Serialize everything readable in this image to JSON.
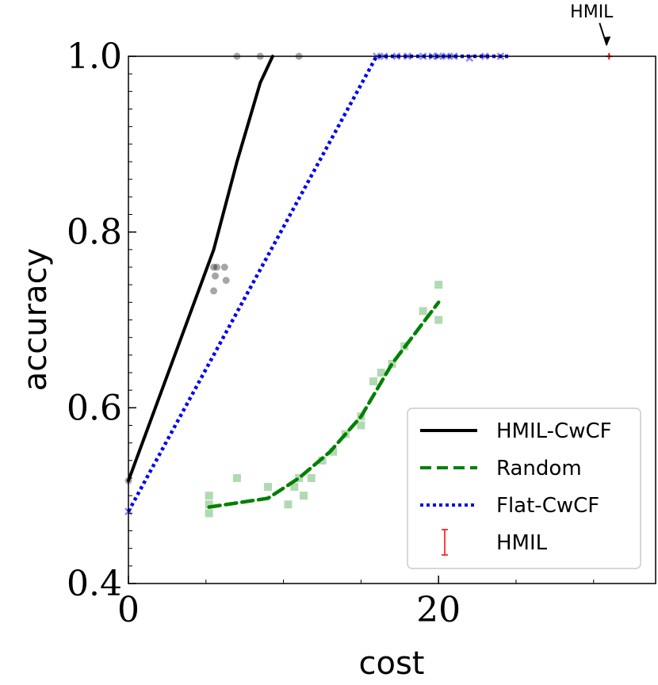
{
  "chart_data": {
    "type": "line",
    "xlabel": "cost",
    "ylabel": "accuracy",
    "xlim": [
      0,
      34
    ],
    "ylim": [
      0.4,
      1.0
    ],
    "x_ticks": [
      0,
      20
    ],
    "x_tick_labels": [
      "0",
      "20"
    ],
    "x_minor_ticks": [
      5,
      10,
      15,
      25,
      30
    ],
    "y_ticks": [
      0.4,
      0.6,
      0.8,
      1.0
    ],
    "y_tick_labels": [
      "0.4",
      "0.6",
      "0.8",
      "1.0"
    ],
    "y_minor_ticks": [
      0.42,
      0.44,
      0.46,
      0.48,
      0.5,
      0.52,
      0.54,
      0.56,
      0.58,
      0.62,
      0.64,
      0.66,
      0.68,
      0.7,
      0.72,
      0.74,
      0.76,
      0.78,
      0.82,
      0.84,
      0.86,
      0.88,
      0.9,
      0.92,
      0.94,
      0.96,
      0.98
    ],
    "legend_position": "bottom-right",
    "series": [
      {
        "name": "HMIL-CwCF",
        "color": "#000000",
        "style": "solid",
        "x": [
          0,
          5.5,
          7,
          8.5,
          9.3
        ],
        "y": [
          0.517,
          0.78,
          0.88,
          0.97,
          1.0
        ],
        "scatter": {
          "marker": "circle",
          "x": [
            0,
            5.5,
            5.5,
            5.6,
            5.7,
            6.2,
            6.3,
            7,
            8.5,
            11
          ],
          "y": [
            0.517,
            0.76,
            0.733,
            0.75,
            0.76,
            0.76,
            0.745,
            1.0,
            1.0,
            1.0
          ]
        }
      },
      {
        "name": "Random",
        "color": "#008000",
        "style": "dashed",
        "x": [
          5.2,
          9,
          11,
          13,
          15,
          17,
          20
        ],
        "y": [
          0.487,
          0.497,
          0.52,
          0.55,
          0.59,
          0.65,
          0.72
        ],
        "scatter": {
          "marker": "square",
          "x": [
            5.2,
            5.2,
            5.2,
            7,
            9,
            10.3,
            10.7,
            11,
            11.3,
            11.8,
            12.5,
            13.2,
            14,
            15,
            15,
            15.8,
            16.3,
            17,
            17.8,
            19,
            20,
            20
          ],
          "y": [
            0.48,
            0.49,
            0.5,
            0.52,
            0.51,
            0.49,
            0.51,
            0.52,
            0.5,
            0.52,
            0.54,
            0.55,
            0.57,
            0.58,
            0.59,
            0.63,
            0.64,
            0.65,
            0.67,
            0.71,
            0.7,
            0.74
          ]
        }
      },
      {
        "name": "Flat-CwCF",
        "color": "#0000ee",
        "style": "dotted",
        "x": [
          0,
          16,
          24.5
        ],
        "y": [
          0.482,
          1.0,
          1.0
        ],
        "scatter": {
          "marker": "x",
          "x": [
            0,
            16,
            16.5,
            17.3,
            18,
            19,
            19.6,
            20,
            20.5,
            21,
            22,
            23,
            24
          ],
          "y": [
            0.482,
            1.0,
            1.0,
            1.0,
            1.0,
            1.0,
            1.0,
            1.0,
            1.0,
            1.0,
            0.998,
            1.0,
            1.0
          ]
        }
      },
      {
        "name": "HMIL",
        "color": "#ff0000",
        "style": "errorbar",
        "x": [
          31
        ],
        "y": [
          1.0
        ]
      }
    ],
    "annotations": [
      {
        "text": "HMIL",
        "target_x": 31,
        "target_y": 1.0
      }
    ]
  }
}
